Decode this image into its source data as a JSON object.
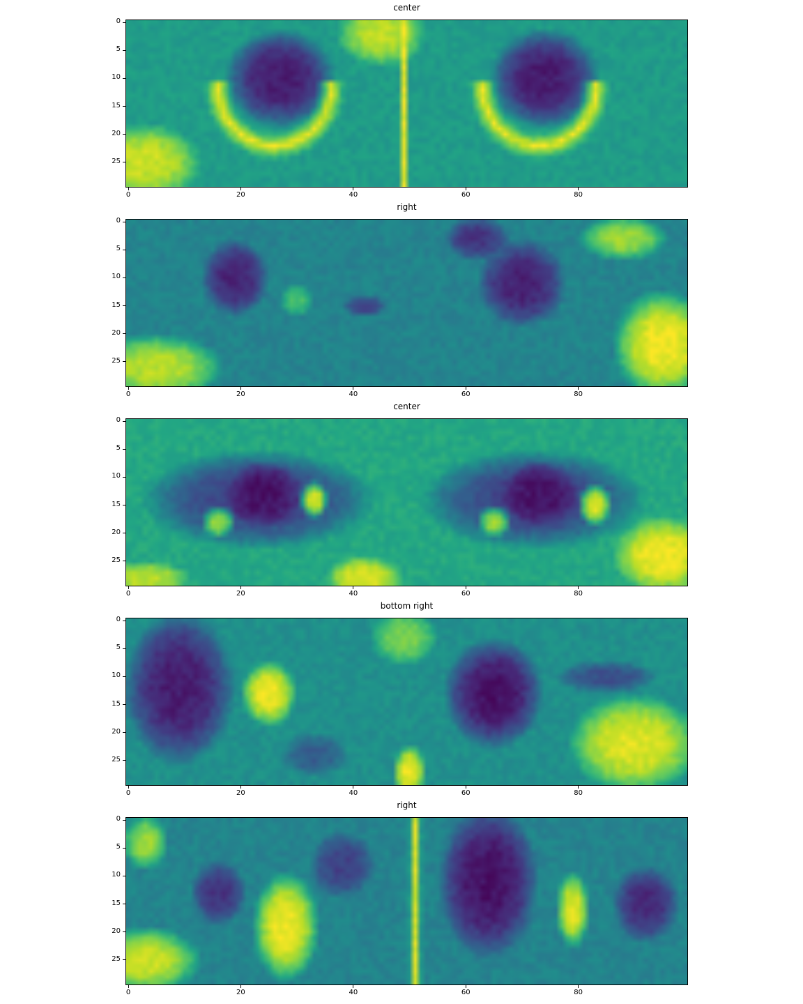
{
  "figure": {
    "colormap": "viridis",
    "colors": {
      "low": "#440154",
      "mid": "#21918c",
      "high": "#fde725"
    }
  },
  "chart_data": [
    {
      "type": "heatmap",
      "title": "center",
      "xlabel": "",
      "ylabel": "",
      "xlim": [
        0,
        99
      ],
      "ylim": [
        29,
        0
      ],
      "xticks": [
        "0",
        "20",
        "40",
        "60",
        "80"
      ],
      "yticks": [
        "0",
        "5",
        "10",
        "15",
        "20",
        "25"
      ],
      "image_size": [
        100,
        30
      ],
      "features": [
        {
          "kind": "base",
          "value": 0.55
        },
        {
          "kind": "blob",
          "cx": 27,
          "cy": 10,
          "rx": 10,
          "ry": 9,
          "value": 0.08
        },
        {
          "kind": "blob",
          "cx": 74,
          "cy": 10,
          "rx": 10,
          "ry": 9,
          "value": 0.08
        },
        {
          "kind": "ring",
          "cx": 26,
          "cy": 12,
          "r": 10,
          "w": 2.5,
          "value": 0.98
        },
        {
          "kind": "ring",
          "cx": 73,
          "cy": 12,
          "r": 10,
          "w": 2.5,
          "value": 0.98
        },
        {
          "kind": "blob",
          "cx": 3,
          "cy": 25,
          "rx": 10,
          "ry": 7,
          "value": 0.92
        },
        {
          "kind": "blob",
          "cx": 45,
          "cy": 2,
          "rx": 8,
          "ry": 6,
          "value": 0.9
        },
        {
          "kind": "vline",
          "x": 49,
          "w": 0.7,
          "value": 0.98
        }
      ]
    },
    {
      "type": "heatmap",
      "title": "right",
      "xlabel": "",
      "ylabel": "",
      "xlim": [
        0,
        99
      ],
      "ylim": [
        29,
        0
      ],
      "xticks": [
        "0",
        "20",
        "40",
        "60",
        "80"
      ],
      "yticks": [
        "0",
        "5",
        "10",
        "15",
        "20",
        "25"
      ],
      "image_size": [
        100,
        30
      ],
      "features": [
        {
          "kind": "base",
          "value": 0.45
        },
        {
          "kind": "blob",
          "cx": 19,
          "cy": 10,
          "rx": 6,
          "ry": 7,
          "value": 0.1
        },
        {
          "kind": "blob",
          "cx": 70,
          "cy": 11,
          "rx": 8,
          "ry": 8,
          "value": 0.1
        },
        {
          "kind": "blob",
          "cx": 42,
          "cy": 15,
          "rx": 4,
          "ry": 2,
          "value": 0.2
        },
        {
          "kind": "blob",
          "cx": 62,
          "cy": 3,
          "rx": 6,
          "ry": 4,
          "value": 0.15
        },
        {
          "kind": "blob",
          "cx": 95,
          "cy": 22,
          "rx": 9,
          "ry": 10,
          "value": 0.98
        },
        {
          "kind": "blob",
          "cx": 5,
          "cy": 26,
          "rx": 12,
          "ry": 6,
          "value": 0.9
        },
        {
          "kind": "blob",
          "cx": 88,
          "cy": 3,
          "rx": 8,
          "ry": 4,
          "value": 0.85
        },
        {
          "kind": "blob",
          "cx": 30,
          "cy": 14,
          "rx": 3,
          "ry": 3,
          "value": 0.7
        }
      ]
    },
    {
      "type": "heatmap",
      "title": "center",
      "xlabel": "",
      "ylabel": "",
      "xlim": [
        0,
        99
      ],
      "ylim": [
        29,
        0
      ],
      "xticks": [
        "0",
        "20",
        "40",
        "60",
        "80"
      ],
      "yticks": [
        "0",
        "5",
        "10",
        "15",
        "20",
        "25"
      ],
      "image_size": [
        100,
        30
      ],
      "features": [
        {
          "kind": "base",
          "value": 0.6
        },
        {
          "kind": "blob",
          "cx": 23,
          "cy": 14,
          "rx": 21,
          "ry": 9,
          "value": 0.2
        },
        {
          "kind": "blob",
          "cx": 72,
          "cy": 14,
          "rx": 20,
          "ry": 9,
          "value": 0.2
        },
        {
          "kind": "blob",
          "cx": 24,
          "cy": 13,
          "rx": 7,
          "ry": 6,
          "value": 0.05
        },
        {
          "kind": "blob",
          "cx": 73,
          "cy": 13,
          "rx": 7,
          "ry": 6,
          "value": 0.05
        },
        {
          "kind": "blob",
          "cx": 33,
          "cy": 14,
          "rx": 2.5,
          "ry": 3.5,
          "value": 0.95
        },
        {
          "kind": "blob",
          "cx": 16,
          "cy": 18,
          "rx": 3,
          "ry": 3,
          "value": 0.85
        },
        {
          "kind": "blob",
          "cx": 83,
          "cy": 15,
          "rx": 3,
          "ry": 4,
          "value": 0.95
        },
        {
          "kind": "blob",
          "cx": 65,
          "cy": 18,
          "rx": 3,
          "ry": 3,
          "value": 0.85
        },
        {
          "kind": "blob",
          "cx": 95,
          "cy": 24,
          "rx": 9,
          "ry": 7,
          "value": 0.98
        },
        {
          "kind": "blob",
          "cx": 42,
          "cy": 28,
          "rx": 7,
          "ry": 4,
          "value": 0.95
        },
        {
          "kind": "blob",
          "cx": 3,
          "cy": 28,
          "rx": 8,
          "ry": 3,
          "value": 0.9
        }
      ]
    },
    {
      "type": "heatmap",
      "title": "bottom right",
      "xlabel": "",
      "ylabel": "",
      "xlim": [
        0,
        99
      ],
      "ylim": [
        29,
        0
      ],
      "xticks": [
        "0",
        "20",
        "40",
        "60",
        "80"
      ],
      "yticks": [
        "0",
        "5",
        "10",
        "15",
        "20",
        "25"
      ],
      "image_size": [
        100,
        30
      ],
      "features": [
        {
          "kind": "base",
          "value": 0.5
        },
        {
          "kind": "blob",
          "cx": 9,
          "cy": 12,
          "rx": 10,
          "ry": 14,
          "value": 0.08
        },
        {
          "kind": "blob",
          "cx": 65,
          "cy": 13,
          "rx": 9,
          "ry": 10,
          "value": 0.05
        },
        {
          "kind": "blob",
          "cx": 25,
          "cy": 13,
          "rx": 5,
          "ry": 6,
          "value": 0.98
        },
        {
          "kind": "blob",
          "cx": 50,
          "cy": 27,
          "rx": 3,
          "ry": 5,
          "value": 0.98
        },
        {
          "kind": "blob",
          "cx": 90,
          "cy": 22,
          "rx": 12,
          "ry": 9,
          "value": 0.95
        },
        {
          "kind": "blob",
          "cx": 85,
          "cy": 10,
          "rx": 9,
          "ry": 3,
          "value": 0.25
        },
        {
          "kind": "blob",
          "cx": 49,
          "cy": 3,
          "rx": 6,
          "ry": 5,
          "value": 0.8
        },
        {
          "kind": "blob",
          "cx": 33,
          "cy": 24,
          "rx": 6,
          "ry": 4,
          "value": 0.3
        }
      ]
    },
    {
      "type": "heatmap",
      "title": "right",
      "xlabel": "",
      "ylabel": "",
      "xlim": [
        0,
        99
      ],
      "ylim": [
        29,
        0
      ],
      "xticks": [
        "0",
        "20",
        "40",
        "60",
        "80"
      ],
      "yticks": [
        "0",
        "5",
        "10",
        "15",
        "20",
        "25"
      ],
      "image_size": [
        100,
        30
      ],
      "features": [
        {
          "kind": "base",
          "value": 0.45
        },
        {
          "kind": "blob",
          "cx": 64,
          "cy": 11,
          "rx": 9,
          "ry": 14,
          "value": 0.05
        },
        {
          "kind": "blob",
          "cx": 92,
          "cy": 15,
          "rx": 6,
          "ry": 7,
          "value": 0.12
        },
        {
          "kind": "blob",
          "cx": 16,
          "cy": 13,
          "rx": 5,
          "ry": 6,
          "value": 0.15
        },
        {
          "kind": "blob",
          "cx": 38,
          "cy": 8,
          "rx": 6,
          "ry": 6,
          "value": 0.2
        },
        {
          "kind": "blob",
          "cx": 28,
          "cy": 19,
          "rx": 6,
          "ry": 10,
          "value": 0.98
        },
        {
          "kind": "blob",
          "cx": 79,
          "cy": 16,
          "rx": 3,
          "ry": 7,
          "value": 0.95
        },
        {
          "kind": "blob",
          "cx": 3,
          "cy": 25,
          "rx": 10,
          "ry": 6,
          "value": 0.92
        },
        {
          "kind": "vline",
          "x": 51,
          "w": 1.2,
          "value": 0.95
        },
        {
          "kind": "blob",
          "cx": 3,
          "cy": 4,
          "rx": 4,
          "ry": 5,
          "value": 0.85
        }
      ]
    }
  ]
}
